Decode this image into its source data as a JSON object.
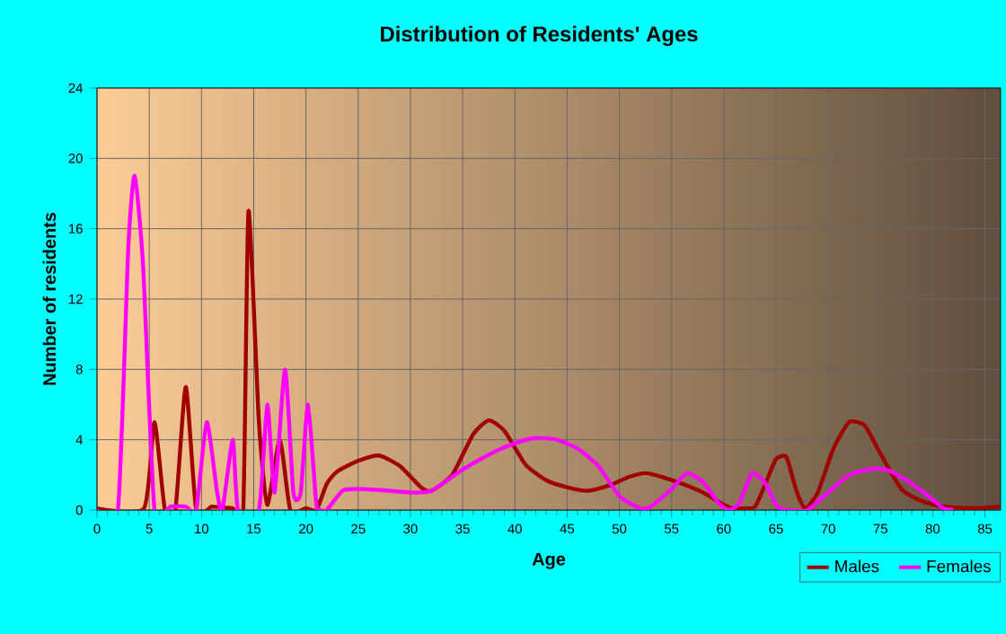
{
  "chart_data": {
    "type": "line",
    "title": "Distribution of Residents' Ages",
    "xlabel": "Age",
    "ylabel": "Number of residents",
    "xlim": [
      0,
      86.5
    ],
    "xticks": [
      0,
      5,
      10,
      15,
      20,
      25,
      30,
      35,
      40,
      45,
      50,
      55,
      60,
      65,
      70,
      75,
      80,
      85
    ],
    "ylim": [
      0,
      24
    ],
    "yticks": [
      0,
      4,
      8,
      12,
      16,
      20,
      24
    ],
    "grid": true,
    "legend": "bottom right",
    "series": [
      {
        "name": "Males",
        "color": "#a00000",
        "x": [
          0,
          4.5,
          5.5,
          6.5,
          7.5,
          8.5,
          9.5,
          11,
          13,
          14,
          14.5,
          15.5,
          16.3,
          17.5,
          18.5,
          20,
          21,
          22,
          23,
          25,
          27,
          29,
          31,
          32,
          34,
          36,
          37.5,
          39,
          41,
          43,
          45,
          47,
          49,
          51,
          52.5,
          54,
          56,
          58,
          60,
          61,
          62,
          63,
          64,
          65,
          66,
          67,
          67.8,
          69,
          70.5,
          72,
          73.5,
          75,
          77,
          79,
          81,
          84,
          86.5
        ],
        "values": [
          0.1,
          0.1,
          5,
          0,
          0,
          7,
          0,
          0.2,
          0.1,
          0,
          17,
          5,
          0.3,
          4,
          0,
          0.1,
          0,
          1.5,
          2.2,
          2.8,
          3.1,
          2.5,
          1.3,
          1.1,
          2,
          4.3,
          5.1,
          4.5,
          2.6,
          1.7,
          1.3,
          1.1,
          1.4,
          1.9,
          2.1,
          1.9,
          1.5,
          1,
          0.3,
          0.1,
          0.1,
          0.2,
          1.5,
          2.9,
          3,
          1,
          0.1,
          1,
          3.5,
          5,
          4.8,
          3.2,
          1.2,
          0.5,
          0.2,
          0.1,
          0.2
        ]
      },
      {
        "name": "Females",
        "color": "#ff00ff",
        "x": [
          0,
          2,
          3,
          3.6,
          4.4,
          5.5,
          7,
          8.5,
          9.5,
          10.5,
          11.5,
          12,
          13,
          13.5,
          15.5,
          16.3,
          17,
          18,
          18.8,
          19.5,
          20.2,
          21,
          21.5,
          22,
          23.5,
          25,
          28,
          30,
          32,
          35,
          38,
          40,
          42,
          44,
          46,
          48,
          50,
          52,
          53,
          55,
          56.5,
          58,
          59.5,
          60.5,
          61.5,
          62.7,
          64,
          65,
          66,
          68,
          70,
          72,
          74.4,
          76,
          78,
          80,
          81,
          82
        ],
        "values": [
          0,
          0,
          15,
          19,
          14,
          0,
          0.2,
          0.2,
          0,
          5,
          1,
          0,
          4,
          0,
          0,
          6,
          1,
          8,
          1,
          1,
          6,
          0.3,
          0,
          0,
          1.1,
          1.2,
          1.1,
          1,
          1.1,
          2.3,
          3.3,
          3.8,
          4.1,
          4,
          3.5,
          2.5,
          0.8,
          0.1,
          0.2,
          1.2,
          2.1,
          1.6,
          0.4,
          0,
          0.4,
          2.1,
          1.5,
          0.3,
          0,
          0,
          1,
          2,
          2.35,
          2.2,
          1.5,
          0.6,
          0.1,
          0
        ]
      }
    ]
  }
}
